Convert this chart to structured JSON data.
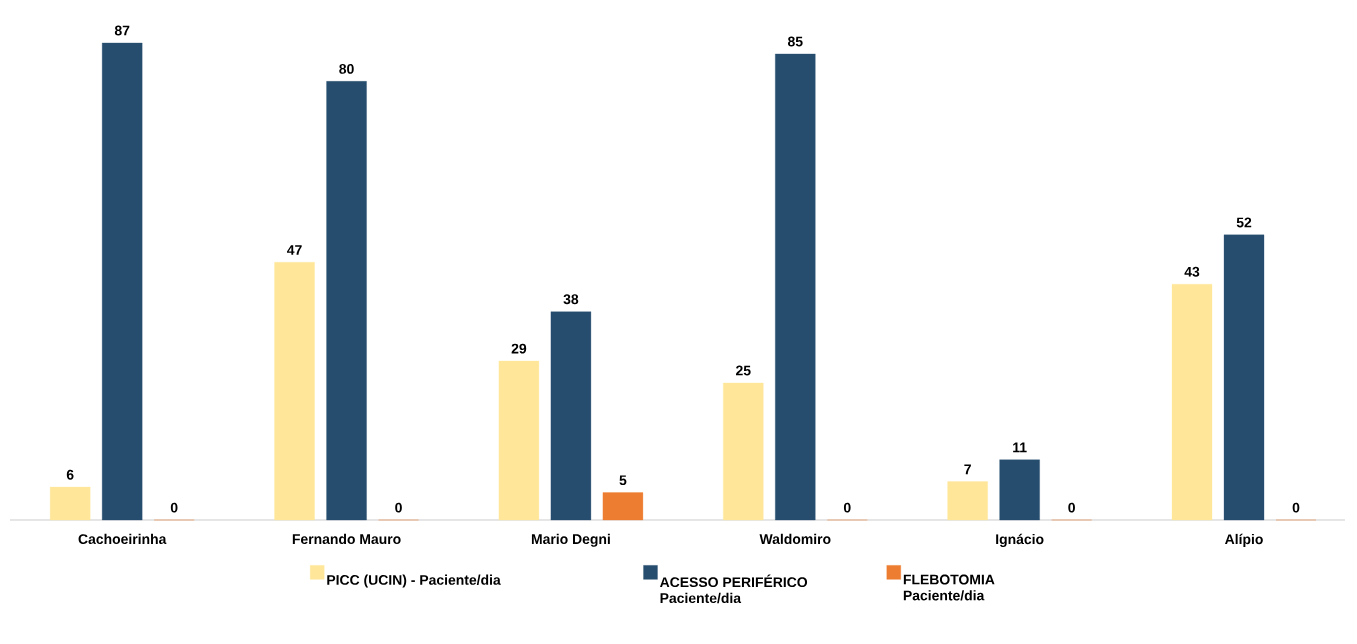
{
  "chart_data": {
    "type": "bar",
    "categories": [
      "Cachoeirinha",
      "Fernando Mauro",
      "Mario Degni",
      "Waldomiro",
      "Ignácio",
      "Alípio"
    ],
    "series": [
      {
        "name": "PICC (UCIN) - Paciente/dia",
        "color": "#ffe699",
        "values": [
          6,
          47,
          29,
          25,
          7,
          43
        ]
      },
      {
        "name": "ACESSO PERIFÉRICO Paciente/dia",
        "color": "#264d6e",
        "values": [
          87,
          80,
          38,
          85,
          11,
          52
        ]
      },
      {
        "name": "FLEBOTOMIA Paciente/dia",
        "color": "#ed7d31",
        "values": [
          0,
          0,
          5,
          0,
          0,
          0
        ]
      }
    ],
    "data_labels": true,
    "legend": "bottom"
  }
}
